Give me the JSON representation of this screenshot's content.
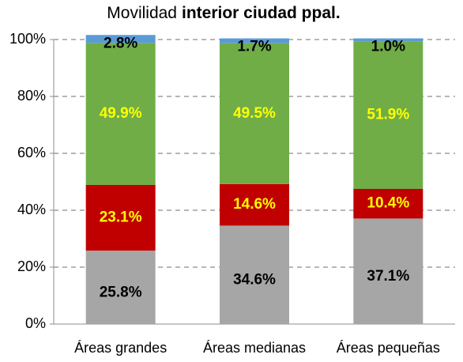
{
  "chart_data": {
    "type": "stacked_bar",
    "title": [
      "Movilidad",
      "interior ciudad ppal."
    ],
    "categories": [
      "Áreas grandes",
      "Áreas medianas",
      "Áreas pequeñas"
    ],
    "series": [
      {
        "color": "#a6a6a6",
        "label_color": "#000000",
        "values": [
          25.8,
          34.6,
          37.1
        ],
        "value_labels": [
          "25.8%",
          "34.6%",
          "37.1%"
        ]
      },
      {
        "color": "#c00000",
        "label_color": "#ffff00",
        "values": [
          23.1,
          14.6,
          10.4
        ],
        "value_labels": [
          "23.1%",
          "14.6%",
          "10.4%"
        ]
      },
      {
        "color": "#70ad47",
        "label_color": "#ffff00",
        "values": [
          49.9,
          49.5,
          51.9
        ],
        "value_labels": [
          "49.9%",
          "49.5%",
          "51.9%"
        ]
      },
      {
        "color": "#5b9bd5",
        "label_color": "#000000",
        "values": [
          2.8,
          1.7,
          1.0
        ],
        "value_labels": [
          "2.8%",
          "1.7%",
          "1.0%"
        ]
      }
    ],
    "ylim": [
      0,
      100
    ],
    "yticks": [
      {
        "value": 0,
        "label": "0%"
      },
      {
        "value": 20,
        "label": "20%"
      },
      {
        "value": 40,
        "label": "40%"
      },
      {
        "value": 60,
        "label": "60%"
      },
      {
        "value": 80,
        "label": "80%"
      },
      {
        "value": 100,
        "label": "100%"
      }
    ],
    "grid": true
  }
}
